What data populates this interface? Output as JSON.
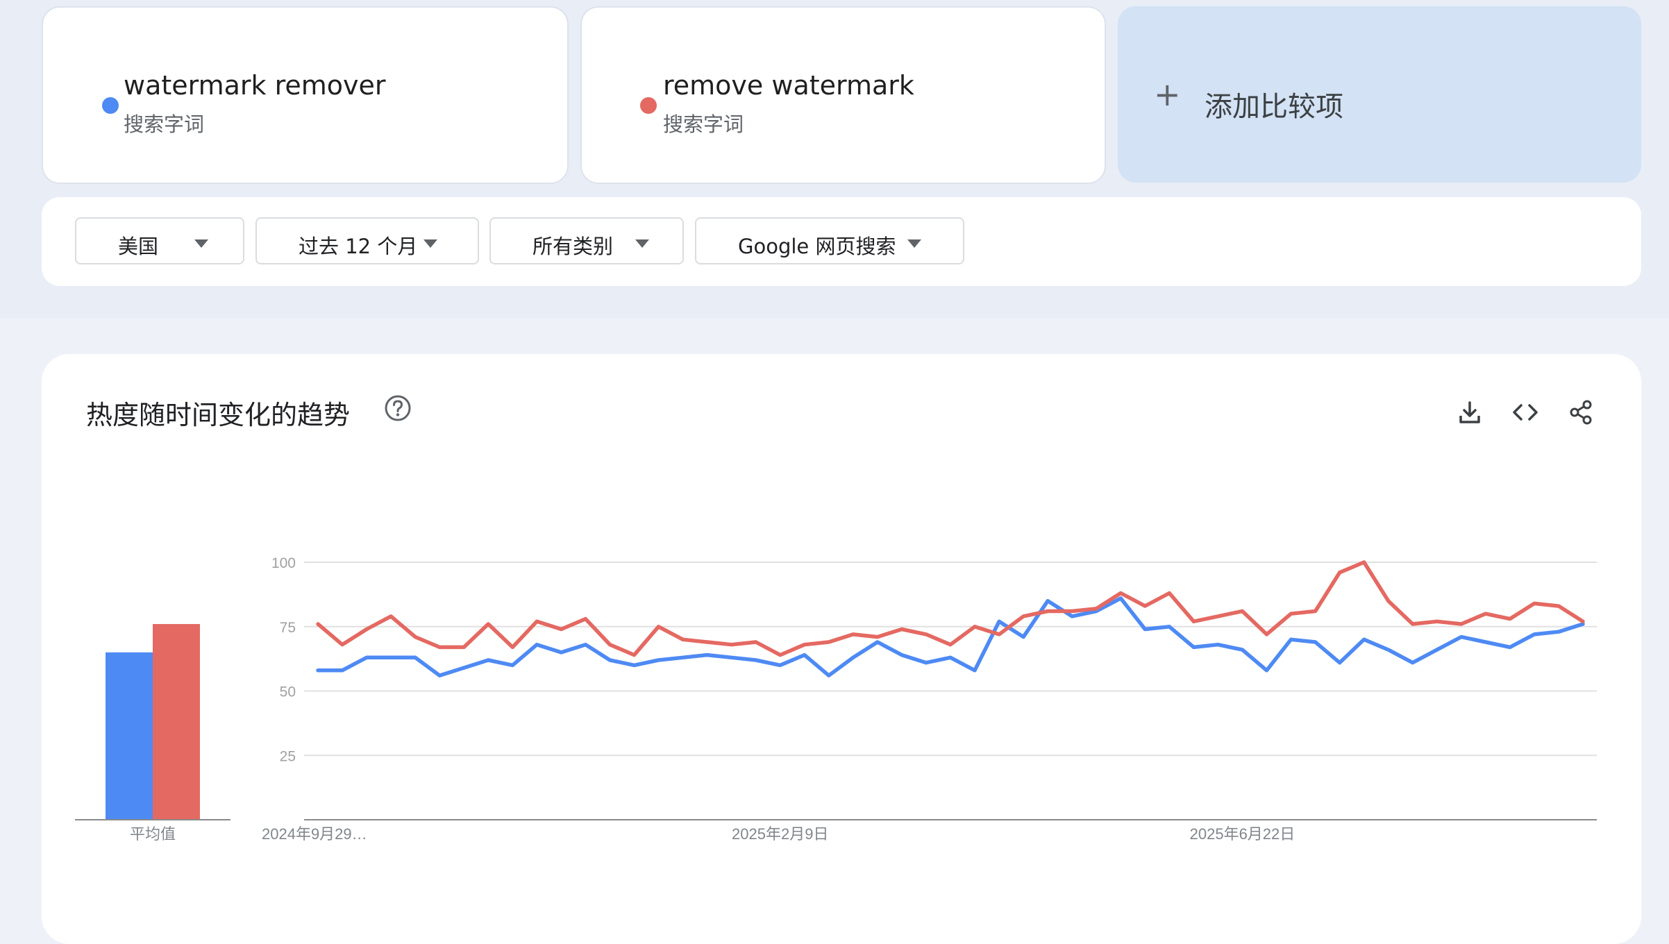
{
  "terms": [
    {
      "name": "watermark remover",
      "subtitle": "搜索字词",
      "color": "#4e8af4"
    },
    {
      "name": "remove watermark",
      "subtitle": "搜索字词",
      "color": "#e46962"
    }
  ],
  "add_compare": {
    "label": "添加比较项",
    "icon": "plus-icon"
  },
  "filters": {
    "region": "美国",
    "time_range": "过去 12 个月",
    "category": "所有类别",
    "search_type": "Google 网页搜索"
  },
  "chart_panel": {
    "title": "热度随时间变化的趋势",
    "icons": [
      "help-icon",
      "download-icon",
      "embed-code-icon",
      "share-icon"
    ],
    "average_label": "平均值"
  },
  "chart_data": {
    "type": "line",
    "ylim": [
      0,
      100
    ],
    "yticks": [
      25,
      50,
      75,
      100
    ],
    "grid": true,
    "x_tick_labels": [
      {
        "label": "2024年9月29…",
        "index": 0
      },
      {
        "label": "2025年2月9日",
        "index": 19
      },
      {
        "label": "2025年6月22日",
        "index": 38
      }
    ],
    "series": [
      {
        "name": "watermark remover",
        "color": "#4e8af4",
        "average": 65,
        "values": [
          58,
          58,
          63,
          63,
          63,
          56,
          59,
          62,
          60,
          68,
          65,
          68,
          62,
          60,
          62,
          63,
          64,
          63,
          62,
          60,
          64,
          56,
          63,
          69,
          64,
          61,
          63,
          58,
          77,
          71,
          85,
          79,
          81,
          86,
          74,
          75,
          67,
          68,
          66,
          58,
          70,
          69,
          61,
          70,
          66,
          61,
          66,
          71,
          69,
          67,
          72,
          73,
          76
        ]
      },
      {
        "name": "remove watermark",
        "color": "#e46962",
        "average": 76,
        "values": [
          76,
          68,
          74,
          79,
          71,
          67,
          67,
          76,
          67,
          77,
          74,
          78,
          68,
          64,
          75,
          70,
          69,
          68,
          69,
          64,
          68,
          69,
          72,
          71,
          74,
          72,
          68,
          75,
          72,
          79,
          81,
          81,
          82,
          88,
          83,
          88,
          77,
          79,
          81,
          72,
          80,
          81,
          96,
          100,
          85,
          76,
          77,
          76,
          80,
          78,
          84,
          83,
          77
        ]
      }
    ]
  }
}
